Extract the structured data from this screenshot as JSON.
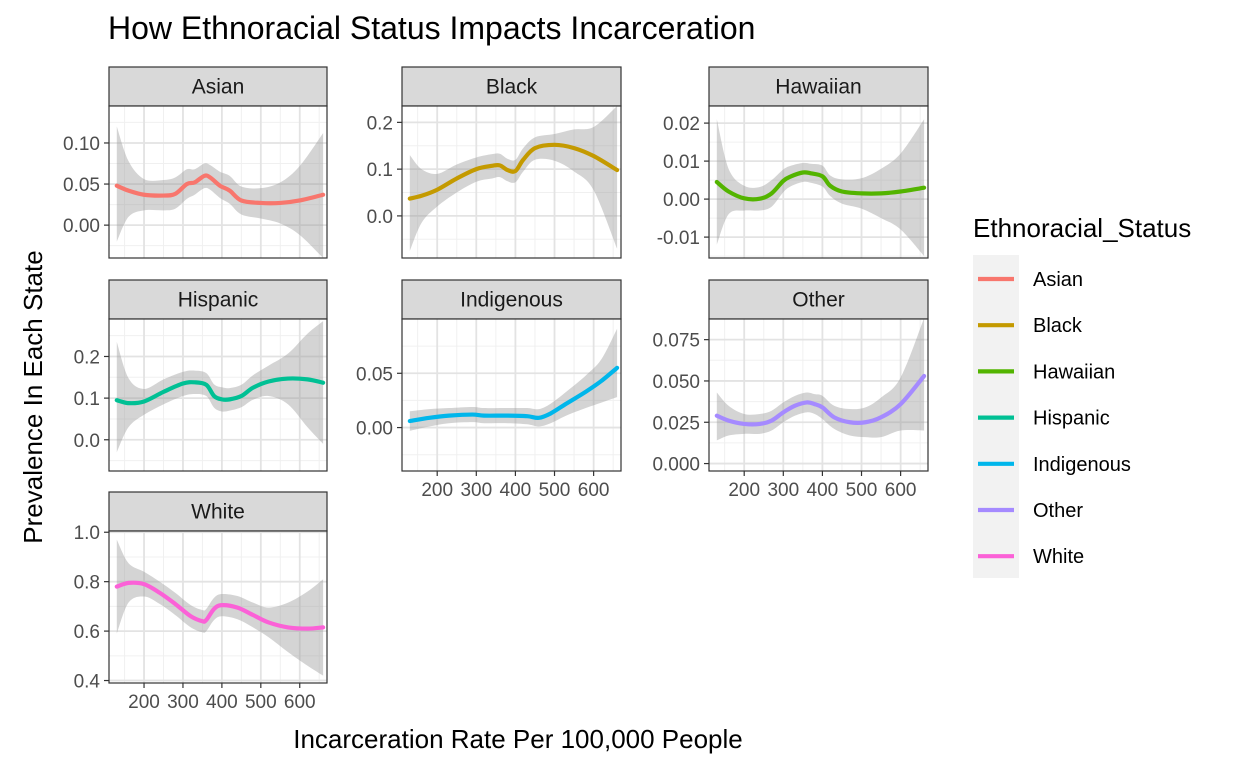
{
  "chart_data": {
    "type": "line",
    "title": "How Ethnoracial Status Impacts Incarceration",
    "xlabel": "Incarceration Rate Per 100,000 People",
    "ylabel": "Prevalence In Each State",
    "x_ticks": [
      200,
      300,
      400,
      500,
      600
    ],
    "x_tick_labels": [
      "200",
      "300",
      "400",
      "500",
      "600"
    ],
    "xlim": [
      110,
      670
    ],
    "grid": true,
    "legend": {
      "title": "Ethnoracial_Status",
      "placement": "right",
      "items": [
        "Asian",
        "Black",
        "Hawaiian",
        "Hispanic",
        "Indigenous",
        "Other",
        "White"
      ]
    },
    "panels": [
      {
        "name": "Asian",
        "color": "#F8766D",
        "ylim": [
          -0.04,
          0.145
        ],
        "y_ticks": [
          0.0,
          0.05,
          0.1
        ],
        "y_tick_labels": [
          "0.00",
          "0.05",
          "0.10"
        ],
        "x": [
          130,
          160,
          200,
          250,
          280,
          310,
          330,
          355,
          370,
          395,
          420,
          450,
          500,
          550,
          600,
          660
        ],
        "y": [
          0.048,
          0.042,
          0.037,
          0.036,
          0.038,
          0.05,
          0.052,
          0.06,
          0.058,
          0.048,
          0.042,
          0.03,
          0.027,
          0.027,
          0.03,
          0.037
        ],
        "lo": [
          -0.02,
          0.01,
          0.018,
          0.018,
          0.02,
          0.032,
          0.037,
          0.045,
          0.043,
          0.033,
          0.026,
          0.013,
          0.008,
          0.002,
          -0.012,
          -0.04
        ],
        "hi": [
          0.12,
          0.078,
          0.056,
          0.055,
          0.058,
          0.068,
          0.068,
          0.075,
          0.073,
          0.065,
          0.06,
          0.047,
          0.045,
          0.052,
          0.072,
          0.112
        ]
      },
      {
        "name": "Black",
        "color": "#C49A00",
        "ylim": [
          -0.09,
          0.235
        ],
        "y_ticks": [
          0.0,
          0.1,
          0.2
        ],
        "y_tick_labels": [
          "0.0",
          "0.1",
          "0.2"
        ],
        "x": [
          130,
          160,
          200,
          250,
          300,
          340,
          360,
          380,
          400,
          420,
          450,
          500,
          550,
          600,
          660
        ],
        "y": [
          0.037,
          0.043,
          0.056,
          0.08,
          0.1,
          0.107,
          0.108,
          0.098,
          0.096,
          0.12,
          0.145,
          0.152,
          0.145,
          0.128,
          0.098
        ],
        "lo": [
          -0.075,
          -0.015,
          0.02,
          0.05,
          0.073,
          0.08,
          0.083,
          0.074,
          0.072,
          0.095,
          0.12,
          0.118,
          0.095,
          0.055,
          -0.07
        ],
        "hi": [
          0.13,
          0.1,
          0.09,
          0.11,
          0.125,
          0.132,
          0.133,
          0.122,
          0.12,
          0.145,
          0.168,
          0.175,
          0.185,
          0.19,
          0.235
        ]
      },
      {
        "name": "Hawaiian",
        "color": "#53B400",
        "ylim": [
          -0.0155,
          0.0245
        ],
        "y_ticks": [
          -0.01,
          0.0,
          0.01,
          0.02
        ],
        "y_tick_labels": [
          "-0.01",
          "0.00",
          "0.01",
          "0.02"
        ],
        "x": [
          130,
          160,
          200,
          240,
          270,
          300,
          320,
          350,
          370,
          400,
          420,
          450,
          500,
          550,
          600,
          660
        ],
        "y": [
          0.0045,
          0.002,
          0.0002,
          0.0001,
          0.0015,
          0.0048,
          0.006,
          0.007,
          0.0068,
          0.006,
          0.0035,
          0.002,
          0.0015,
          0.0015,
          0.002,
          0.003
        ],
        "lo": [
          -0.012,
          -0.004,
          -0.003,
          -0.003,
          -0.002,
          0.0018,
          0.0034,
          0.0045,
          0.0043,
          0.0033,
          0.0008,
          -0.0012,
          -0.0025,
          -0.005,
          -0.008,
          -0.015
        ],
        "hi": [
          0.021,
          0.008,
          0.0035,
          0.0032,
          0.005,
          0.0078,
          0.0088,
          0.0095,
          0.0093,
          0.0088,
          0.0062,
          0.0052,
          0.0055,
          0.008,
          0.012,
          0.021
        ]
      },
      {
        "name": "Hispanic",
        "color": "#00C094",
        "ylim": [
          -0.075,
          0.29
        ],
        "y_ticks": [
          0.0,
          0.1,
          0.2
        ],
        "y_tick_labels": [
          "0.0",
          "0.1",
          "0.2"
        ],
        "x": [
          130,
          160,
          200,
          250,
          300,
          330,
          360,
          380,
          400,
          420,
          450,
          480,
          520,
          570,
          620,
          660
        ],
        "y": [
          0.095,
          0.088,
          0.092,
          0.115,
          0.135,
          0.138,
          0.132,
          0.105,
          0.097,
          0.097,
          0.105,
          0.125,
          0.14,
          0.147,
          0.145,
          0.137
        ],
        "lo": [
          -0.03,
          0.03,
          0.06,
          0.085,
          0.105,
          0.11,
          0.105,
          0.077,
          0.068,
          0.07,
          0.078,
          0.096,
          0.105,
          0.085,
          0.03,
          -0.01
        ],
        "hi": [
          0.235,
          0.148,
          0.122,
          0.145,
          0.163,
          0.166,
          0.16,
          0.133,
          0.126,
          0.124,
          0.132,
          0.155,
          0.178,
          0.207,
          0.255,
          0.285
        ]
      },
      {
        "name": "Indigenous",
        "color": "#00B6EB",
        "ylim": [
          -0.04,
          0.1
        ],
        "y_ticks": [
          0.0,
          0.05
        ],
        "y_tick_labels": [
          "0.00",
          "0.05"
        ],
        "x": [
          130,
          180,
          230,
          290,
          320,
          380,
          430,
          460,
          490,
          530,
          580,
          620,
          660
        ],
        "y": [
          0.006,
          0.009,
          0.011,
          0.012,
          0.011,
          0.011,
          0.0105,
          0.009,
          0.013,
          0.022,
          0.033,
          0.043,
          0.055
        ],
        "lo": [
          -0.003,
          0.001,
          0.004,
          0.005,
          0.004,
          0.004,
          0.003,
          0.001,
          0.004,
          0.011,
          0.018,
          0.023,
          0.028
        ],
        "hi": [
          0.015,
          0.017,
          0.018,
          0.019,
          0.018,
          0.018,
          0.018,
          0.017,
          0.022,
          0.033,
          0.048,
          0.063,
          0.091
        ]
      },
      {
        "name": "Other",
        "color": "#A58AFF",
        "ylim": [
          -0.0045,
          0.0875
        ],
        "y_ticks": [
          0.0,
          0.025,
          0.05,
          0.075
        ],
        "y_tick_labels": [
          "0.000",
          "0.025",
          "0.050",
          "0.075"
        ],
        "x": [
          130,
          160,
          200,
          240,
          270,
          300,
          330,
          360,
          380,
          400,
          430,
          470,
          510,
          550,
          600,
          660
        ],
        "y": [
          0.029,
          0.026,
          0.024,
          0.024,
          0.026,
          0.031,
          0.035,
          0.037,
          0.036,
          0.034,
          0.028,
          0.025,
          0.025,
          0.028,
          0.036,
          0.053
        ],
        "lo": [
          0.014,
          0.017,
          0.018,
          0.018,
          0.02,
          0.025,
          0.029,
          0.031,
          0.03,
          0.027,
          0.021,
          0.017,
          0.016,
          0.016,
          0.02,
          0.02
        ],
        "hi": [
          0.043,
          0.035,
          0.03,
          0.03,
          0.032,
          0.037,
          0.041,
          0.043,
          0.042,
          0.041,
          0.035,
          0.033,
          0.034,
          0.04,
          0.052,
          0.088
        ]
      },
      {
        "name": "White",
        "color": "#FB61D7",
        "ylim": [
          0.39,
          1.005
        ],
        "y_ticks": [
          0.4,
          0.6,
          0.8,
          1.0
        ],
        "y_tick_labels": [
          "0.4",
          "0.6",
          "0.8",
          "1.0"
        ],
        "x": [
          130,
          160,
          200,
          240,
          280,
          320,
          350,
          360,
          380,
          400,
          440,
          480,
          520,
          570,
          620,
          660
        ],
        "y": [
          0.78,
          0.795,
          0.79,
          0.755,
          0.71,
          0.66,
          0.64,
          0.645,
          0.69,
          0.705,
          0.695,
          0.665,
          0.635,
          0.615,
          0.61,
          0.615
        ],
        "lo": [
          0.59,
          0.715,
          0.74,
          0.71,
          0.665,
          0.615,
          0.595,
          0.6,
          0.645,
          0.66,
          0.648,
          0.615,
          0.575,
          0.515,
          0.46,
          0.42
        ],
        "hi": [
          0.97,
          0.875,
          0.84,
          0.8,
          0.755,
          0.705,
          0.685,
          0.69,
          0.735,
          0.75,
          0.742,
          0.715,
          0.695,
          0.715,
          0.76,
          0.81
        ]
      }
    ]
  }
}
